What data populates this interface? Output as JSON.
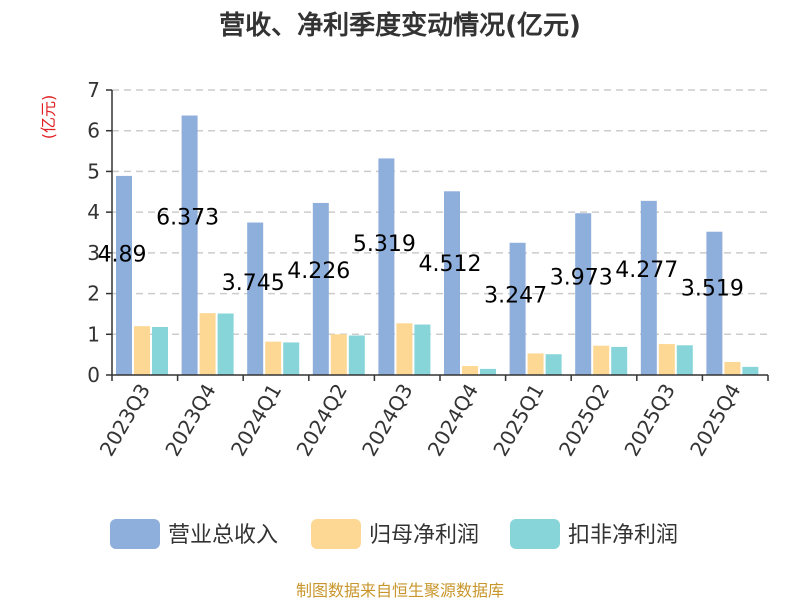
{
  "chart_data": {
    "type": "bar",
    "title": "营收、净利季度变动情况(亿元)",
    "ylabel": "(亿元)",
    "ylim": [
      0,
      7
    ],
    "yticks": [
      0,
      1,
      2,
      3,
      4,
      5,
      6,
      7
    ],
    "grid": true,
    "legend_position": "bottom",
    "categories": [
      "2023Q3",
      "2023Q4",
      "2024Q1",
      "2024Q2",
      "2024Q3",
      "2024Q4",
      "2025Q1",
      "2025Q2",
      "2025Q3",
      "2025Q4"
    ],
    "series": [
      {
        "name": "营业总收入",
        "color": "#8eaedb",
        "values": [
          4.89,
          6.373,
          3.745,
          4.226,
          5.319,
          4.512,
          3.247,
          3.973,
          4.277,
          3.519
        ],
        "labels": [
          "4.89",
          "6.373",
          "3.745",
          "4.226",
          "5.319",
          "4.512",
          "3.247",
          "3.973",
          "4.277",
          "3.519"
        ]
      },
      {
        "name": "归母净利润",
        "color": "#fdd895",
        "values": [
          1.2,
          1.52,
          0.82,
          1.0,
          1.27,
          0.22,
          0.53,
          0.72,
          0.76,
          0.32
        ]
      },
      {
        "name": "扣非净利润",
        "color": "#87d5d8",
        "values": [
          1.18,
          1.51,
          0.8,
          0.97,
          1.24,
          0.15,
          0.51,
          0.69,
          0.73,
          0.2
        ]
      }
    ],
    "source_note": "制图数据来自恒生聚源数据库",
    "colors": {
      "ylabel": "#e02020",
      "source": "#c8962c",
      "grid": "#cccccc",
      "axis": "#333333"
    }
  }
}
